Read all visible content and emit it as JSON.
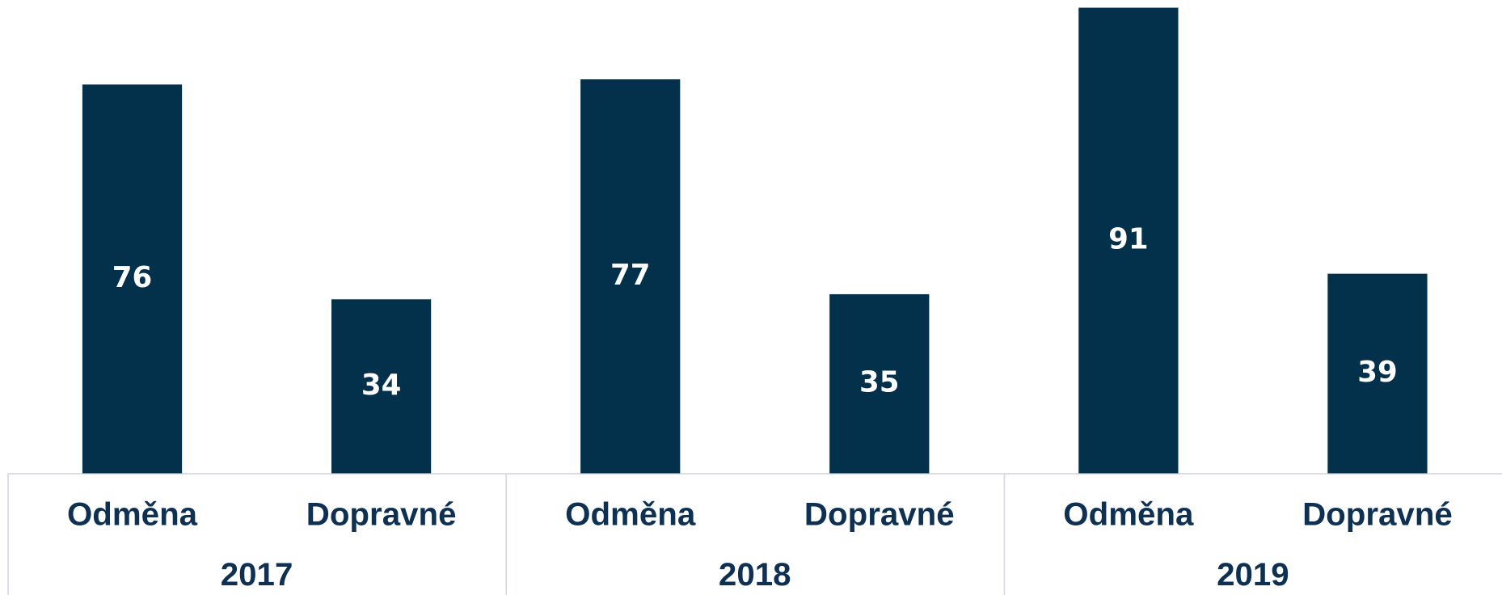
{
  "chart_data": {
    "type": "bar",
    "groups": [
      "2017",
      "2018",
      "2019"
    ],
    "categories": [
      "Odměna",
      "Dopravné",
      "Odměna",
      "Dopravné",
      "Odměna",
      "Dopravné"
    ],
    "values": [
      76,
      34,
      77,
      35,
      91,
      39
    ],
    "color": "#03304a"
  }
}
